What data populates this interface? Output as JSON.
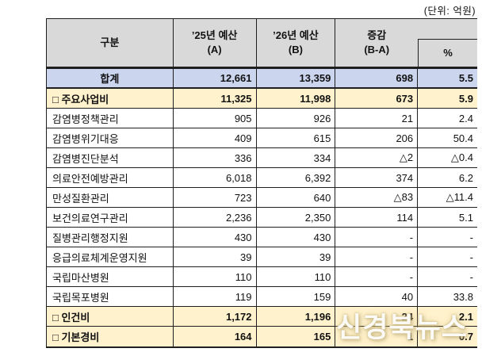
{
  "unit_label": "(단위: 억원)",
  "watermark": "신경북뉴스",
  "colors": {
    "header_bg": "#D9D9D9",
    "total_row_bg": "#CBD5EE",
    "subtotal_row_bg": "#FFF2CC",
    "border": "#1f1f1f"
  },
  "table": {
    "columns": [
      {
        "label": "구분",
        "sub": ""
      },
      {
        "label": "’25년 예산",
        "sub": "(A)"
      },
      {
        "label": "’26년 예산",
        "sub": "(B)"
      },
      {
        "label": "증감",
        "sub": "(B-A)"
      },
      {
        "label": "%",
        "sub": ""
      }
    ],
    "rows": [
      {
        "name": "합계",
        "a": "12,661",
        "b": "13,359",
        "diff": "698",
        "pct": "5.5",
        "type": "total"
      },
      {
        "name": "□ 주요사업비",
        "a": "11,325",
        "b": "11,998",
        "diff": "673",
        "pct": "5.9",
        "type": "subtotal"
      },
      {
        "name": "감염병정책관리",
        "a": "905",
        "b": "926",
        "diff": "21",
        "pct": "2.4",
        "type": "normal"
      },
      {
        "name": "감염병위기대응",
        "a": "409",
        "b": "615",
        "diff": "206",
        "pct": "50.4",
        "type": "normal"
      },
      {
        "name": "감염병진단분석",
        "a": "336",
        "b": "334",
        "diff": "△2",
        "pct": "△0.4",
        "type": "normal"
      },
      {
        "name": "의료안전예방관리",
        "a": "6,018",
        "b": "6,392",
        "diff": "374",
        "pct": "6.2",
        "type": "normal"
      },
      {
        "name": "만성질환관리",
        "a": "723",
        "b": "640",
        "diff": "△83",
        "pct": "△11.4",
        "type": "normal"
      },
      {
        "name": "보건의료연구관리",
        "a": "2,236",
        "b": "2,350",
        "diff": "114",
        "pct": "5.1",
        "type": "normal"
      },
      {
        "name": "질병관리행정지원",
        "a": "430",
        "b": "430",
        "diff": "-",
        "pct": "-",
        "type": "normal"
      },
      {
        "name": "응급의료체계운영지원",
        "a": "39",
        "b": "39",
        "diff": "-",
        "pct": "-",
        "type": "normal"
      },
      {
        "name": "국립마산병원",
        "a": "110",
        "b": "110",
        "diff": "-",
        "pct": "-",
        "type": "normal"
      },
      {
        "name": "국립목포병원",
        "a": "119",
        "b": "159",
        "diff": "40",
        "pct": "33.8",
        "type": "normal"
      },
      {
        "name": "□ 인건비",
        "a": "1,172",
        "b": "1,196",
        "diff": "24",
        "pct": "2.1",
        "type": "subtotal"
      },
      {
        "name": "□ 기본경비",
        "a": "164",
        "b": "165",
        "diff": "1",
        "pct": "0.7",
        "type": "subtotal"
      }
    ]
  }
}
